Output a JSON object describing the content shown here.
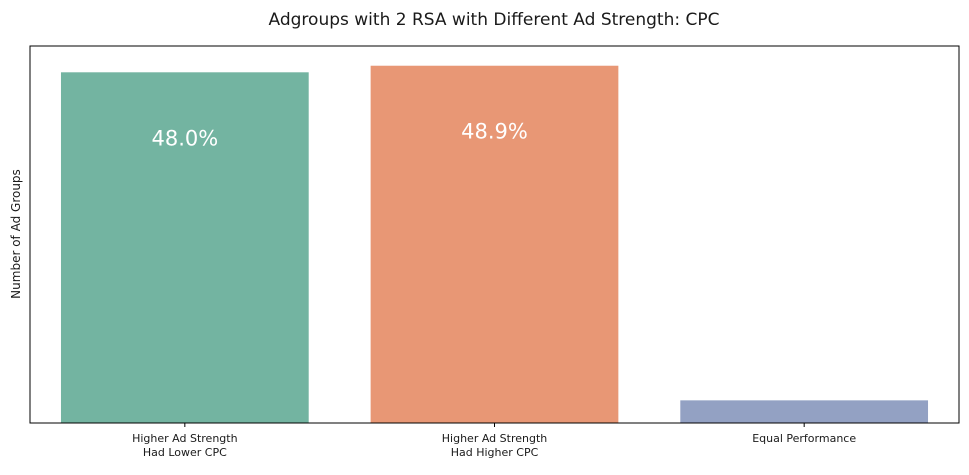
{
  "chart_data": {
    "type": "bar",
    "title": "Adgroups with 2 RSA with Different Ad Strength: CPC",
    "xlabel": "",
    "ylabel": "Number of Ad Groups",
    "categories": [
      [
        "Higher Ad Strength",
        "Had Lower CPC"
      ],
      [
        "Higher Ad Strength",
        "Had Higher CPC"
      ],
      [
        "Equal Performance"
      ]
    ],
    "values": [
      48.0,
      48.9,
      3.1
    ],
    "data_labels": [
      "48.0%",
      "48.9%",
      ""
    ],
    "colors": [
      "#73b4a1",
      "#e89775",
      "#93a1c3"
    ],
    "ylim": [
      0,
      51.6
    ],
    "y_ticks_visible": false,
    "grid": false,
    "legend": "none"
  }
}
